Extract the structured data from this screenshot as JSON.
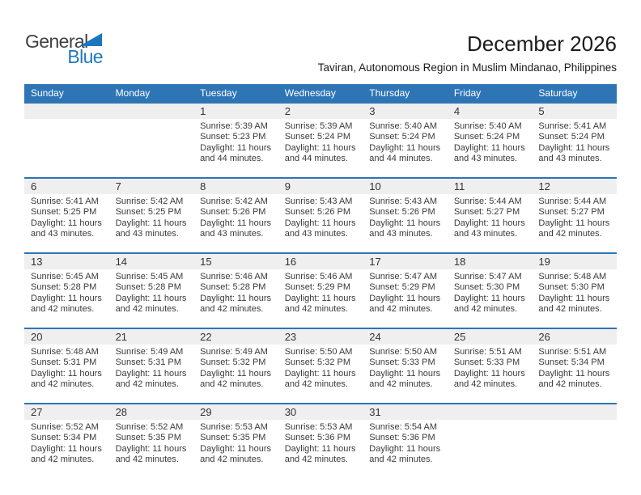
{
  "logo": {
    "part1": "General",
    "part2": "Blue"
  },
  "header": {
    "title": "December 2026",
    "subtitle": "Taviran, Autonomous Region in Muslim Mindanao, Philippines"
  },
  "calendar": {
    "weekday_headers": [
      "Sunday",
      "Monday",
      "Tuesday",
      "Wednesday",
      "Thursday",
      "Friday",
      "Saturday"
    ],
    "weeks": [
      [
        null,
        null,
        {
          "day": "1",
          "lines": [
            "Sunrise: 5:39 AM",
            "Sunset: 5:23 PM",
            "Daylight: 11 hours",
            "and 44 minutes."
          ]
        },
        {
          "day": "2",
          "lines": [
            "Sunrise: 5:39 AM",
            "Sunset: 5:24 PM",
            "Daylight: 11 hours",
            "and 44 minutes."
          ]
        },
        {
          "day": "3",
          "lines": [
            "Sunrise: 5:40 AM",
            "Sunset: 5:24 PM",
            "Daylight: 11 hours",
            "and 44 minutes."
          ]
        },
        {
          "day": "4",
          "lines": [
            "Sunrise: 5:40 AM",
            "Sunset: 5:24 PM",
            "Daylight: 11 hours",
            "and 43 minutes."
          ]
        },
        {
          "day": "5",
          "lines": [
            "Sunrise: 5:41 AM",
            "Sunset: 5:24 PM",
            "Daylight: 11 hours",
            "and 43 minutes."
          ]
        }
      ],
      [
        {
          "day": "6",
          "lines": [
            "Sunrise: 5:41 AM",
            "Sunset: 5:25 PM",
            "Daylight: 11 hours",
            "and 43 minutes."
          ]
        },
        {
          "day": "7",
          "lines": [
            "Sunrise: 5:42 AM",
            "Sunset: 5:25 PM",
            "Daylight: 11 hours",
            "and 43 minutes."
          ]
        },
        {
          "day": "8",
          "lines": [
            "Sunrise: 5:42 AM",
            "Sunset: 5:26 PM",
            "Daylight: 11 hours",
            "and 43 minutes."
          ]
        },
        {
          "day": "9",
          "lines": [
            "Sunrise: 5:43 AM",
            "Sunset: 5:26 PM",
            "Daylight: 11 hours",
            "and 43 minutes."
          ]
        },
        {
          "day": "10",
          "lines": [
            "Sunrise: 5:43 AM",
            "Sunset: 5:26 PM",
            "Daylight: 11 hours",
            "and 43 minutes."
          ]
        },
        {
          "day": "11",
          "lines": [
            "Sunrise: 5:44 AM",
            "Sunset: 5:27 PM",
            "Daylight: 11 hours",
            "and 43 minutes."
          ]
        },
        {
          "day": "12",
          "lines": [
            "Sunrise: 5:44 AM",
            "Sunset: 5:27 PM",
            "Daylight: 11 hours",
            "and 42 minutes."
          ]
        }
      ],
      [
        {
          "day": "13",
          "lines": [
            "Sunrise: 5:45 AM",
            "Sunset: 5:28 PM",
            "Daylight: 11 hours",
            "and 42 minutes."
          ]
        },
        {
          "day": "14",
          "lines": [
            "Sunrise: 5:45 AM",
            "Sunset: 5:28 PM",
            "Daylight: 11 hours",
            "and 42 minutes."
          ]
        },
        {
          "day": "15",
          "lines": [
            "Sunrise: 5:46 AM",
            "Sunset: 5:28 PM",
            "Daylight: 11 hours",
            "and 42 minutes."
          ]
        },
        {
          "day": "16",
          "lines": [
            "Sunrise: 5:46 AM",
            "Sunset: 5:29 PM",
            "Daylight: 11 hours",
            "and 42 minutes."
          ]
        },
        {
          "day": "17",
          "lines": [
            "Sunrise: 5:47 AM",
            "Sunset: 5:29 PM",
            "Daylight: 11 hours",
            "and 42 minutes."
          ]
        },
        {
          "day": "18",
          "lines": [
            "Sunrise: 5:47 AM",
            "Sunset: 5:30 PM",
            "Daylight: 11 hours",
            "and 42 minutes."
          ]
        },
        {
          "day": "19",
          "lines": [
            "Sunrise: 5:48 AM",
            "Sunset: 5:30 PM",
            "Daylight: 11 hours",
            "and 42 minutes."
          ]
        }
      ],
      [
        {
          "day": "20",
          "lines": [
            "Sunrise: 5:48 AM",
            "Sunset: 5:31 PM",
            "Daylight: 11 hours",
            "and 42 minutes."
          ]
        },
        {
          "day": "21",
          "lines": [
            "Sunrise: 5:49 AM",
            "Sunset: 5:31 PM",
            "Daylight: 11 hours",
            "and 42 minutes."
          ]
        },
        {
          "day": "22",
          "lines": [
            "Sunrise: 5:49 AM",
            "Sunset: 5:32 PM",
            "Daylight: 11 hours",
            "and 42 minutes."
          ]
        },
        {
          "day": "23",
          "lines": [
            "Sunrise: 5:50 AM",
            "Sunset: 5:32 PM",
            "Daylight: 11 hours",
            "and 42 minutes."
          ]
        },
        {
          "day": "24",
          "lines": [
            "Sunrise: 5:50 AM",
            "Sunset: 5:33 PM",
            "Daylight: 11 hours",
            "and 42 minutes."
          ]
        },
        {
          "day": "25",
          "lines": [
            "Sunrise: 5:51 AM",
            "Sunset: 5:33 PM",
            "Daylight: 11 hours",
            "and 42 minutes."
          ]
        },
        {
          "day": "26",
          "lines": [
            "Sunrise: 5:51 AM",
            "Sunset: 5:34 PM",
            "Daylight: 11 hours",
            "and 42 minutes."
          ]
        }
      ],
      [
        {
          "day": "27",
          "lines": [
            "Sunrise: 5:52 AM",
            "Sunset: 5:34 PM",
            "Daylight: 11 hours",
            "and 42 minutes."
          ]
        },
        {
          "day": "28",
          "lines": [
            "Sunrise: 5:52 AM",
            "Sunset: 5:35 PM",
            "Daylight: 11 hours",
            "and 42 minutes."
          ]
        },
        {
          "day": "29",
          "lines": [
            "Sunrise: 5:53 AM",
            "Sunset: 5:35 PM",
            "Daylight: 11 hours",
            "and 42 minutes."
          ]
        },
        {
          "day": "30",
          "lines": [
            "Sunrise: 5:53 AM",
            "Sunset: 5:36 PM",
            "Daylight: 11 hours",
            "and 42 minutes."
          ]
        },
        {
          "day": "31",
          "lines": [
            "Sunrise: 5:54 AM",
            "Sunset: 5:36 PM",
            "Daylight: 11 hours",
            "and 42 minutes."
          ]
        },
        null,
        null
      ]
    ]
  },
  "colors": {
    "header_blue": "#2e75b6",
    "band_gray": "#efefef",
    "logo_blue": "#2177be",
    "text_dark": "#1b1b1b"
  }
}
